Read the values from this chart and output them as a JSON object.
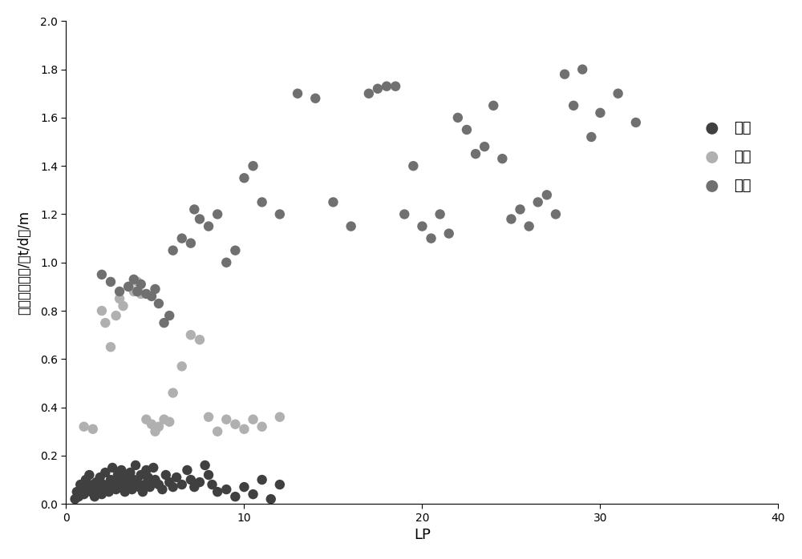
{
  "title": "",
  "xlabel": "LP",
  "ylabel": "每米日产油量/（t/d）/m",
  "xlim": [
    0,
    40
  ],
  "ylim": [
    0,
    2
  ],
  "yticks": [
    0,
    0.2,
    0.4,
    0.6,
    0.8,
    1.0,
    1.2,
    1.4,
    1.6,
    1.8,
    2.0
  ],
  "xticks": [
    0,
    10,
    20,
    30,
    40
  ],
  "background_color": "#ffffff",
  "marker_size": 80,
  "class3_color": "#404040",
  "class2_color": "#b0b0b0",
  "class1_color": "#707070",
  "class3_label": "三类",
  "class2_label": "二类",
  "class1_label": "一类",
  "class3_x": [
    0.5,
    0.6,
    0.7,
    0.8,
    0.9,
    1.0,
    1.1,
    1.2,
    1.3,
    1.4,
    1.5,
    1.6,
    1.7,
    1.8,
    1.9,
    2.0,
    2.1,
    2.2,
    2.3,
    2.4,
    2.5,
    2.6,
    2.7,
    2.8,
    2.9,
    3.0,
    3.1,
    3.2,
    3.3,
    3.4,
    3.5,
    3.6,
    3.7,
    3.8,
    3.9,
    4.0,
    4.1,
    4.2,
    4.3,
    4.4,
    4.5,
    4.6,
    4.7,
    4.8,
    4.9,
    5.0,
    5.2,
    5.4,
    5.6,
    5.8,
    6.0,
    6.2,
    6.5,
    6.8,
    7.0,
    7.2,
    7.5,
    7.8,
    8.0,
    8.2,
    8.5,
    9.0,
    9.5,
    10.0,
    10.5,
    11.0,
    11.5,
    12.0
  ],
  "class3_y": [
    0.02,
    0.05,
    0.03,
    0.08,
    0.06,
    0.04,
    0.1,
    0.07,
    0.12,
    0.05,
    0.08,
    0.03,
    0.09,
    0.06,
    0.11,
    0.04,
    0.08,
    0.13,
    0.07,
    0.05,
    0.1,
    0.15,
    0.08,
    0.06,
    0.12,
    0.09,
    0.14,
    0.07,
    0.05,
    0.11,
    0.08,
    0.13,
    0.06,
    0.1,
    0.16,
    0.09,
    0.07,
    0.12,
    0.05,
    0.08,
    0.14,
    0.11,
    0.07,
    0.09,
    0.15,
    0.1,
    0.08,
    0.06,
    0.12,
    0.09,
    0.07,
    0.11,
    0.08,
    0.14,
    0.1,
    0.07,
    0.09,
    0.16,
    0.12,
    0.08,
    0.05,
    0.06,
    0.03,
    0.07,
    0.04,
    0.1,
    0.02,
    0.08
  ],
  "class2_x": [
    1.0,
    1.5,
    2.0,
    2.2,
    2.5,
    2.8,
    3.0,
    3.2,
    3.5,
    3.8,
    4.0,
    4.2,
    4.5,
    4.8,
    5.0,
    5.2,
    5.5,
    5.8,
    6.0,
    6.5,
    7.0,
    7.5,
    8.0,
    8.5,
    9.0,
    9.5,
    10.0,
    10.5,
    11.0,
    12.0
  ],
  "class2_y": [
    0.32,
    0.31,
    0.8,
    0.75,
    0.65,
    0.78,
    0.85,
    0.82,
    0.9,
    0.88,
    0.92,
    0.87,
    0.35,
    0.33,
    0.3,
    0.32,
    0.35,
    0.34,
    0.46,
    0.57,
    0.7,
    0.68,
    0.36,
    0.3,
    0.35,
    0.33,
    0.31,
    0.35,
    0.32,
    0.36
  ],
  "class1_x": [
    2.0,
    2.5,
    3.0,
    3.5,
    3.8,
    4.0,
    4.2,
    4.5,
    4.8,
    5.0,
    5.2,
    5.5,
    5.8,
    6.0,
    6.5,
    7.0,
    7.2,
    7.5,
    8.0,
    8.5,
    9.0,
    9.5,
    10.0,
    10.5,
    11.0,
    12.0,
    13.0,
    14.0,
    15.0,
    16.0,
    17.0,
    17.5,
    18.0,
    18.5,
    19.0,
    19.5,
    20.0,
    20.5,
    21.0,
    21.5,
    22.0,
    22.5,
    23.0,
    23.5,
    24.0,
    24.5,
    25.0,
    25.5,
    26.0,
    26.5,
    27.0,
    27.5,
    28.0,
    28.5,
    29.0,
    29.5,
    30.0,
    31.0,
    32.0
  ],
  "class1_y": [
    0.95,
    0.92,
    0.88,
    0.9,
    0.93,
    0.88,
    0.91,
    0.87,
    0.86,
    0.89,
    0.83,
    0.75,
    0.78,
    1.05,
    1.1,
    1.08,
    1.22,
    1.18,
    1.15,
    1.2,
    1.0,
    1.05,
    1.35,
    1.4,
    1.25,
    1.2,
    1.7,
    1.68,
    1.25,
    1.15,
    1.7,
    1.72,
    1.73,
    1.73,
    1.2,
    1.4,
    1.15,
    1.1,
    1.2,
    1.12,
    1.6,
    1.55,
    1.45,
    1.48,
    1.65,
    1.43,
    1.18,
    1.22,
    1.15,
    1.25,
    1.28,
    1.2,
    1.78,
    1.65,
    1.8,
    1.52,
    1.62,
    1.7,
    1.58
  ]
}
